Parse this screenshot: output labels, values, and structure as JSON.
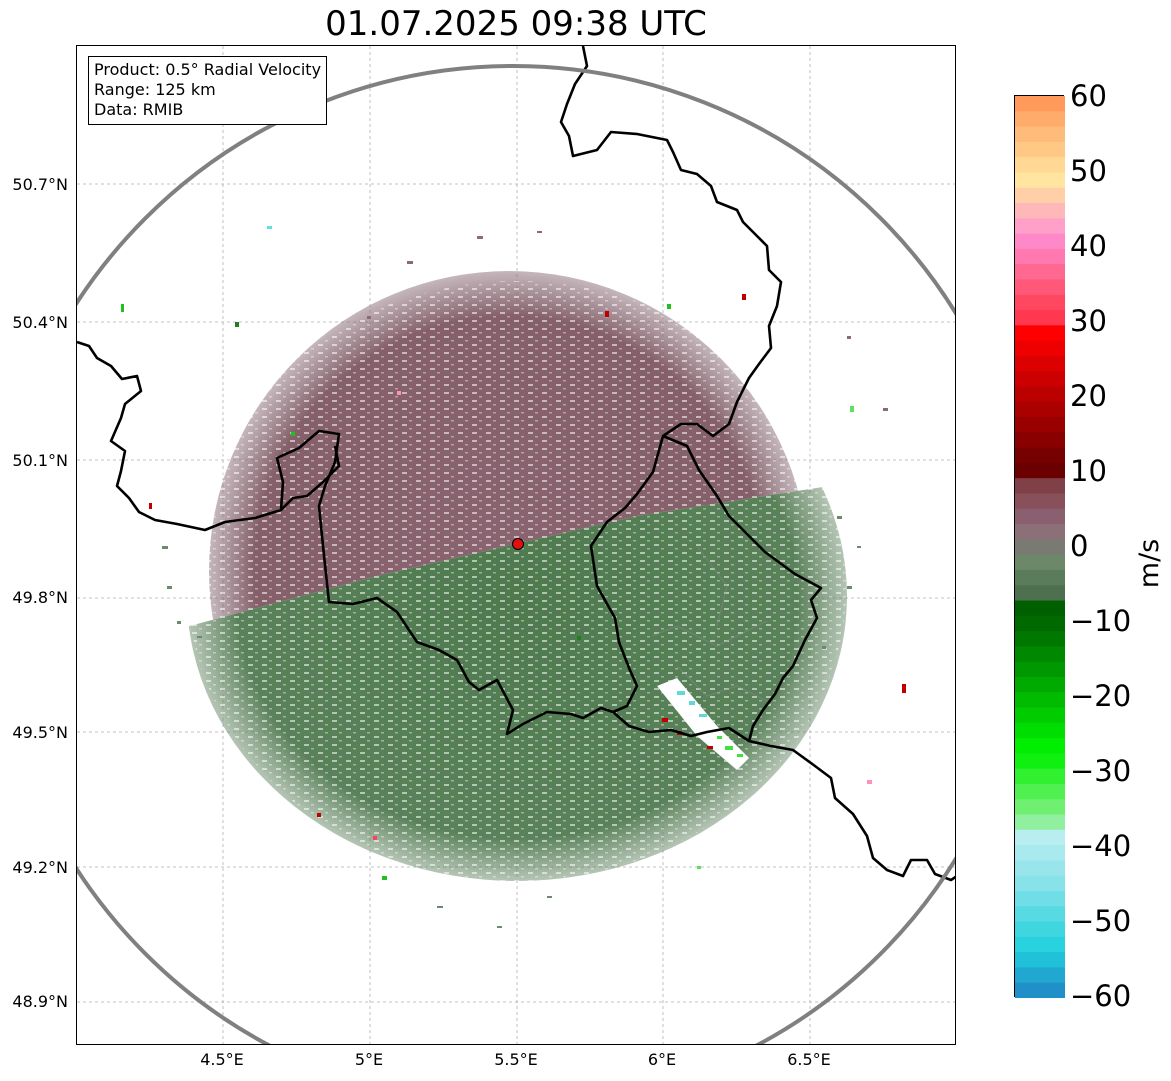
{
  "title": "01.07.2025 09:38 UTC",
  "info_box": [
    "Product: 0.5° Radial Velocity",
    "Range: 125 km",
    "Data: RMIB"
  ],
  "axes": {
    "lat_ticks": [
      "50.7°N",
      "50.4°N",
      "50.1°N",
      "49.8°N",
      "49.5°N",
      "49.2°N",
      "48.9°N"
    ],
    "lon_ticks": [
      "4.5°E",
      "5°E",
      "5.5°E",
      "6°E",
      "6.5°E"
    ],
    "grid": true
  },
  "colorbar": {
    "label": "m/s",
    "ticks": [
      "60",
      "50",
      "40",
      "30",
      "20",
      "10",
      "0",
      "−10",
      "−20",
      "−30",
      "−40",
      "−50",
      "−60"
    ],
    "min": -60,
    "max": 60
  },
  "radar_site_color": "#e01010",
  "range_ring_color": "#808080"
}
